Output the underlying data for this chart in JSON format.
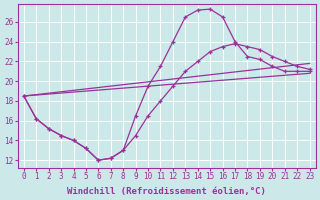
{
  "background_color": "#cce8e8",
  "line_color": "#993399",
  "grid_color": "#ffffff",
  "xlabel": "Windchill (Refroidissement éolien,°C)",
  "xlabel_fontsize": 6.5,
  "tick_fontsize": 5.5,
  "xlim_min": -0.5,
  "xlim_max": 23.5,
  "ylim_min": 11.2,
  "ylim_max": 27.8,
  "yticks": [
    12,
    14,
    16,
    18,
    20,
    22,
    24,
    26
  ],
  "xticks": [
    0,
    1,
    2,
    3,
    4,
    5,
    6,
    7,
    8,
    9,
    10,
    11,
    12,
    13,
    14,
    15,
    16,
    17,
    18,
    19,
    20,
    21,
    22,
    23
  ],
  "curve1_x": [
    0,
    1,
    2,
    3,
    4,
    5,
    6,
    7,
    8,
    9,
    10,
    11,
    12,
    13,
    14,
    15,
    16,
    17,
    18,
    19,
    20,
    21,
    22,
    23
  ],
  "curve1_y": [
    18.5,
    16.2,
    15.2,
    14.5,
    14.0,
    13.2,
    12.0,
    12.2,
    13.0,
    16.5,
    19.5,
    21.5,
    24.0,
    26.5,
    27.2,
    27.3,
    26.5,
    24.0,
    22.5,
    22.2,
    21.5,
    21.0,
    21.0,
    21.0
  ],
  "curve2_x": [
    0,
    1,
    2,
    3,
    4,
    5,
    6,
    7,
    8,
    9,
    10,
    11,
    12,
    13,
    14,
    15,
    16,
    17,
    18,
    19,
    20,
    21,
    22,
    23
  ],
  "curve2_y": [
    18.5,
    16.2,
    15.2,
    14.5,
    14.0,
    13.2,
    12.0,
    12.2,
    13.0,
    14.5,
    16.5,
    18.0,
    19.5,
    21.0,
    22.0,
    23.0,
    23.5,
    23.8,
    23.5,
    23.2,
    22.5,
    22.0,
    21.5,
    21.2
  ],
  "line3_x": [
    0,
    23
  ],
  "line3_y": [
    18.5,
    20.8
  ],
  "line4_x": [
    0,
    23
  ],
  "line4_y": [
    18.5,
    21.8
  ]
}
